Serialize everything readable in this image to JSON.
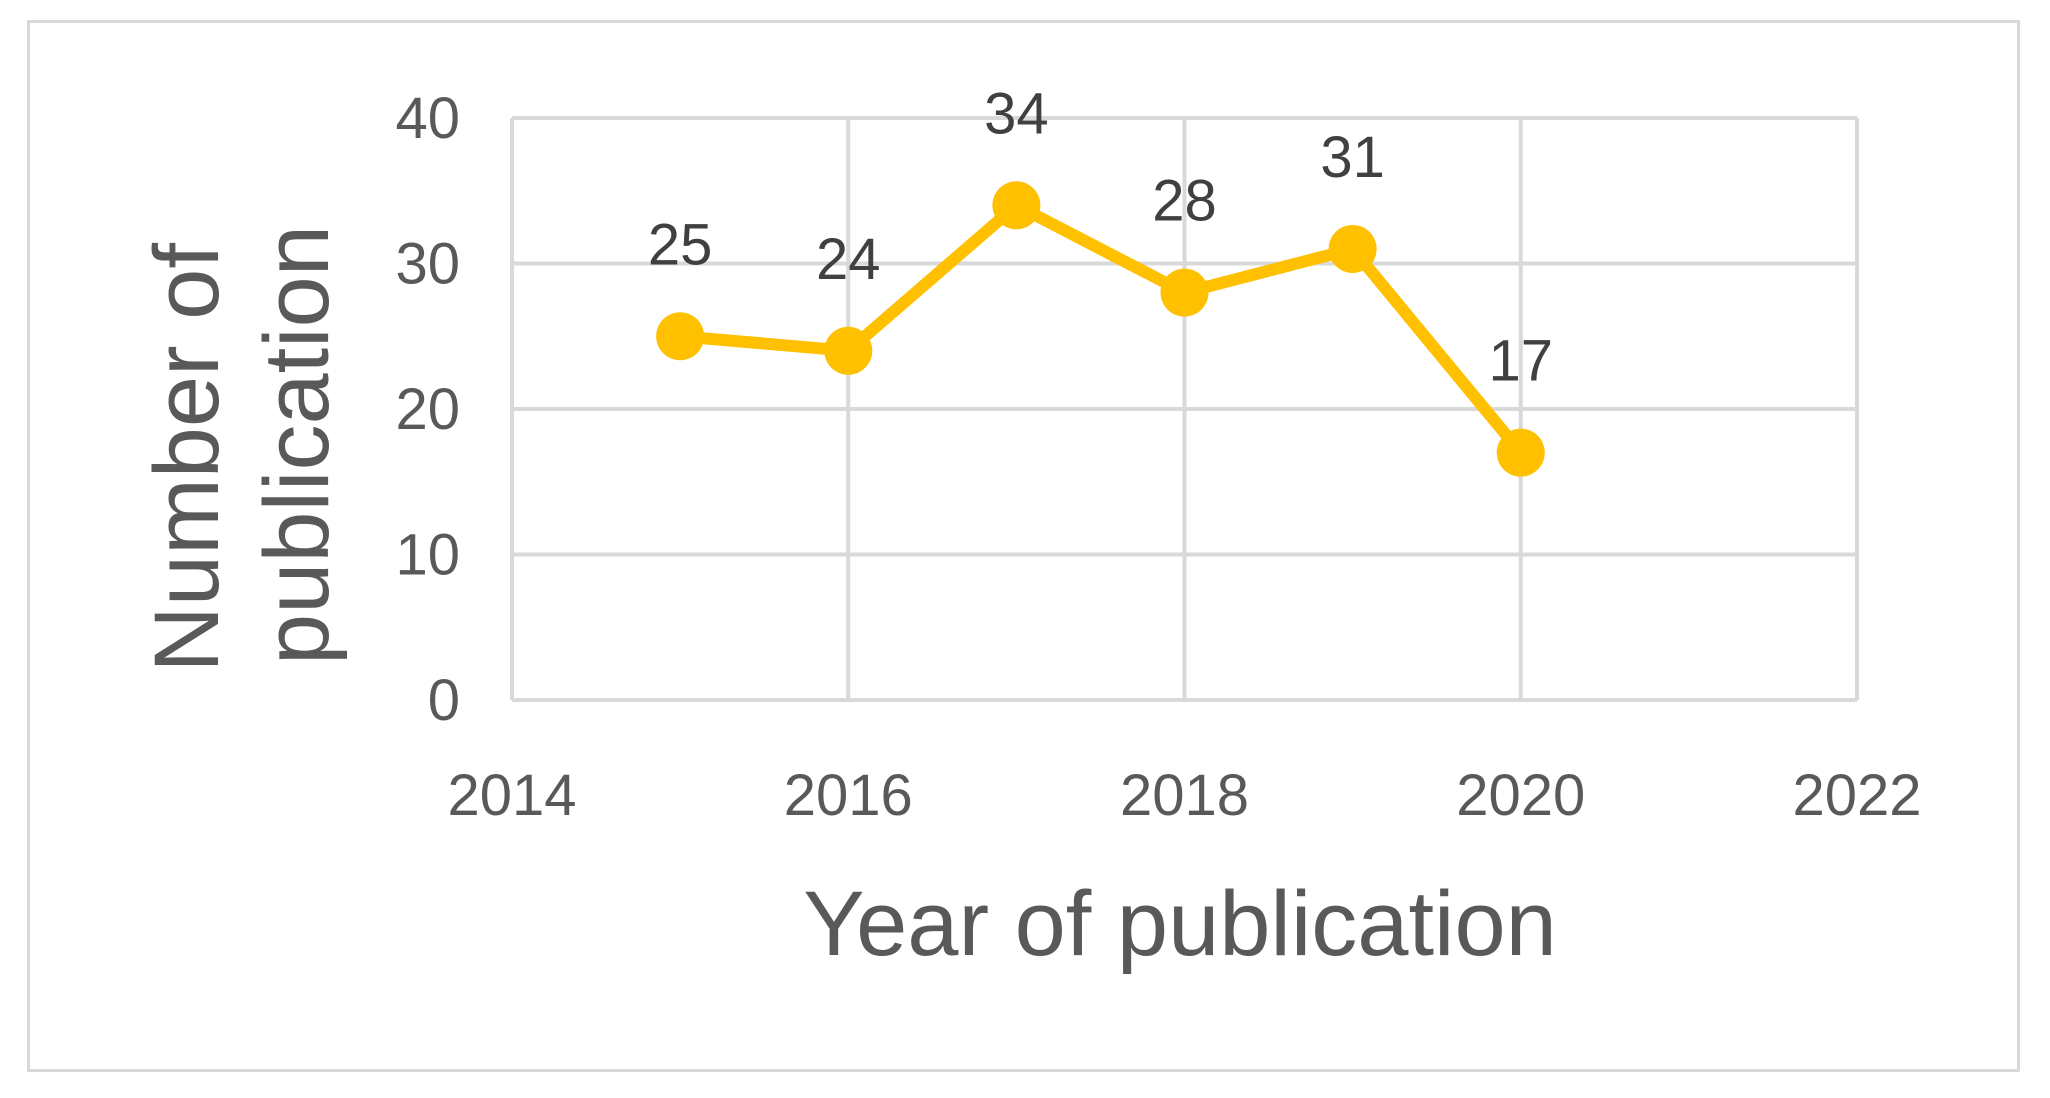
{
  "chart_data": {
    "type": "scatter",
    "mode": "lines+markers",
    "title": "",
    "xlabel": "Year of publication",
    "ylabel_lines": [
      "Number of",
      "publication"
    ],
    "xlim": [
      2014,
      2022
    ],
    "ylim": [
      0,
      40
    ],
    "xticks": [
      2014,
      2016,
      2018,
      2020,
      2022
    ],
    "yticks": [
      0,
      10,
      20,
      30,
      40
    ],
    "grid": true,
    "legend": "none",
    "series": [
      {
        "x": [
          2015,
          2016,
          2017,
          2018,
          2019,
          2020
        ],
        "y": [
          25,
          24,
          34,
          28,
          31,
          17
        ],
        "data_labels": [
          "25",
          "24",
          "34",
          "28",
          "31",
          "17"
        ],
        "color": "#FFC000"
      }
    ],
    "colors": {
      "grid": "#d9d9d9",
      "tick_text": "#595959",
      "data_label_text": "#404040",
      "frame": "#d9d9d9"
    }
  }
}
